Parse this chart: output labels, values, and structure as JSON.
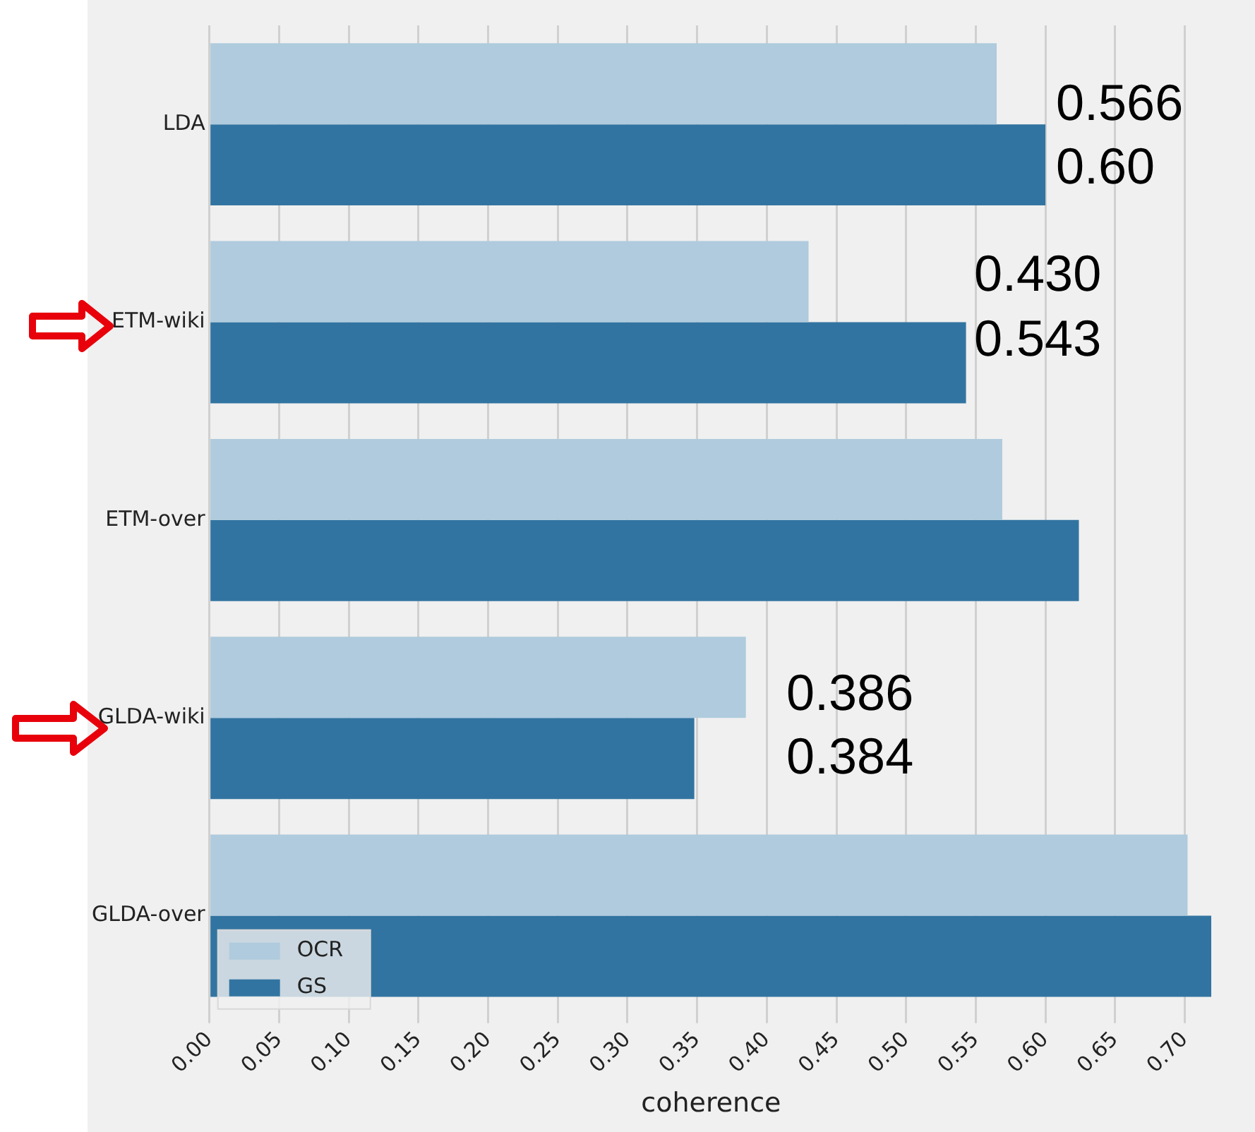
{
  "chart_data": {
    "type": "bar",
    "orientation": "horizontal",
    "xlabel": "coherence",
    "categories": [
      "LDA",
      "ETM-wiki",
      "ETM-over",
      "GLDA-wiki",
      "GLDA-over"
    ],
    "series": [
      {
        "name": "OCR",
        "color": "#afcbdd",
        "values": [
          0.565,
          0.43,
          0.569,
          0.385,
          0.702
        ]
      },
      {
        "name": "GS",
        "color": "#3274a1",
        "values": [
          0.6,
          0.543,
          0.624,
          0.348,
          0.719
        ]
      }
    ],
    "xlim": [
      0,
      0.72
    ],
    "xticks": [
      {
        "value": 0,
        "label": "0.00"
      },
      0.05,
      {
        "value": 0.1,
        "label": "0.10"
      },
      0.15,
      {
        "value": 0.2,
        "label": "0.20"
      },
      0.25,
      {
        "value": 0.3,
        "label": "0.30"
      },
      0.35,
      {
        "value": 0.4,
        "label": "0.40"
      },
      0.45,
      {
        "value": 0.5,
        "label": "0.50"
      },
      0.55,
      {
        "value": 0.6,
        "label": "0.60"
      },
      0.65,
      {
        "value": 0.7,
        "label": "0.70"
      }
    ],
    "grid": "x",
    "legend": "bottom left",
    "annotations": [
      "0.566",
      "0.60",
      "0.430",
      "0.543",
      "0.386",
      "0.384"
    ]
  }
}
